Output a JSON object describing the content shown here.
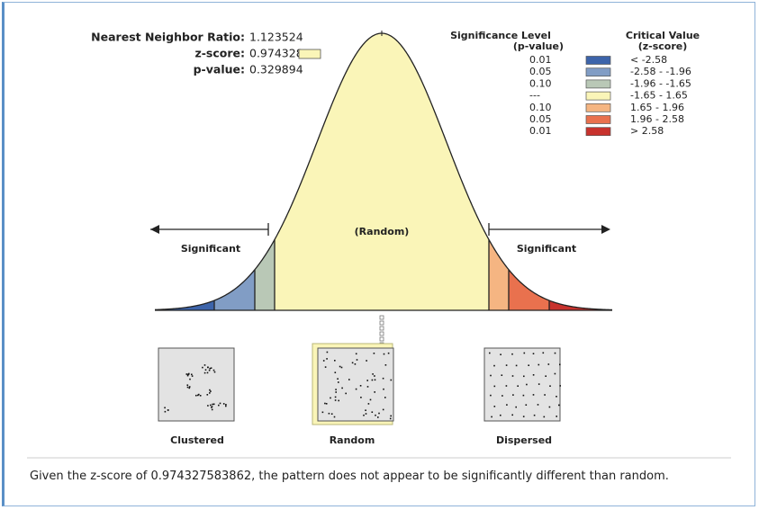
{
  "stats": {
    "ratio_label": "Nearest Neighbor Ratio:",
    "ratio": "1.123524",
    "z_label": "z-score:",
    "z": "0.974328",
    "p_label": "p-value:",
    "p": "0.329894"
  },
  "legend": {
    "sig_title": "Significance Level",
    "sig_sub": "(p-value)",
    "crit_title": "Critical Value",
    "crit_sub": "(z-score)",
    "rows": [
      {
        "p": "0.01",
        "z": "< -2.58",
        "color": "#3d64aa"
      },
      {
        "p": "0.05",
        "z": "-2.58 - -1.96",
        "color": "#819dc5"
      },
      {
        "p": "0.10",
        "z": "-1.96 - -1.65",
        "color": "#b9c8b6"
      },
      {
        "p": "---",
        "z": "-1.65 - 1.65",
        "color": "#faf5b8"
      },
      {
        "p": "0.10",
        "z": "1.65 - 1.96",
        "color": "#f5b582"
      },
      {
        "p": "0.05",
        "z": "1.96 - 2.58",
        "color": "#e9714e"
      },
      {
        "p": "0.01",
        "z": "> 2.58",
        "color": "#c8322d"
      }
    ]
  },
  "curve": {
    "left": "Significant",
    "center": "(Random)",
    "right": "Significant"
  },
  "patterns": [
    "Clustered",
    "Random",
    "Dispersed"
  ],
  "message": "Given the z-score of 0.974327583862, the pattern does not appear to be significantly different than random."
}
